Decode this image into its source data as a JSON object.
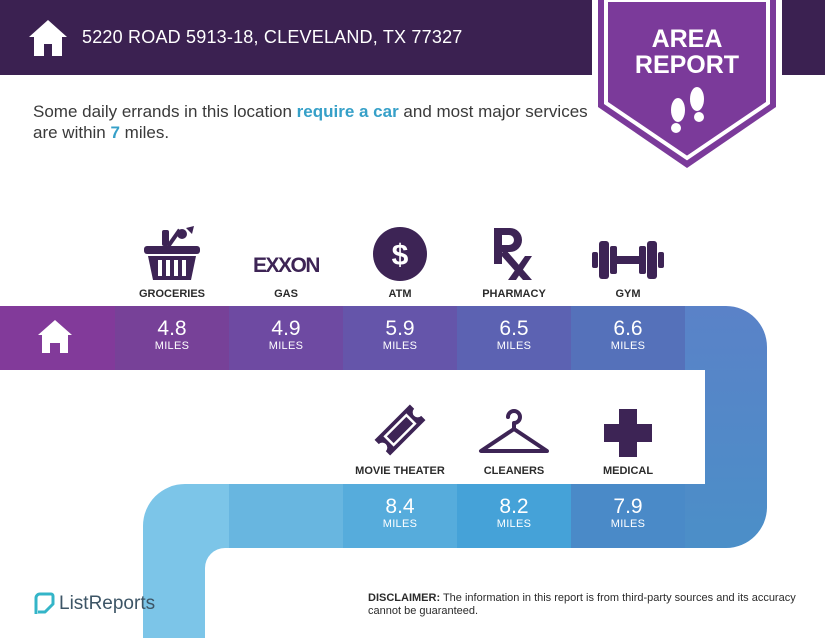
{
  "header": {
    "address": "5220 ROAD 5913-18, CLEVELAND, TX 77327",
    "home_icon": "house-icon"
  },
  "badge": {
    "line1": "AREA",
    "line2": "REPORT",
    "icon": "footprints-icon"
  },
  "intro": {
    "part1": "Some daily errands in this location ",
    "highlight1": "require a car",
    "part2": " and most major services are within ",
    "highlight2": "7",
    "part3": " miles."
  },
  "row1": [
    {
      "label": "GROCERIES",
      "icon": "grocery-basket-icon",
      "value": "4.8",
      "unit": "MILES"
    },
    {
      "label": "GAS",
      "icon": "exxon-logo-icon",
      "logo_text": "EXXON",
      "value": "4.9",
      "unit": "MILES"
    },
    {
      "label": "ATM",
      "icon": "dollar-icon",
      "symbol": "$",
      "value": "5.9",
      "unit": "MILES"
    },
    {
      "label": "PHARMACY",
      "icon": "rx-icon",
      "value": "6.5",
      "unit": "MILES"
    },
    {
      "label": "GYM",
      "icon": "dumbbell-icon",
      "value": "6.6",
      "unit": "MILES"
    }
  ],
  "row2": [
    {
      "label": "MOVIE THEATER",
      "icon": "ticket-icon",
      "value": "8.4",
      "unit": "MILES"
    },
    {
      "label": "CLEANERS",
      "icon": "hanger-icon",
      "value": "8.2",
      "unit": "MILES"
    },
    {
      "label": "MEDICAL",
      "icon": "medical-cross-icon",
      "value": "7.9",
      "unit": "MILES"
    }
  ],
  "footer": {
    "logo_text": "ListReports",
    "disclaimer_label": "DISCLAIMER:",
    "disclaimer_text": " The information in this report is from third-party sources and its accuracy cannot be guaranteed."
  },
  "colors": {
    "header": "#3b2151",
    "badge": "#7b3a9a",
    "icon": "#3d2455",
    "highlight": "#36a0c8"
  }
}
